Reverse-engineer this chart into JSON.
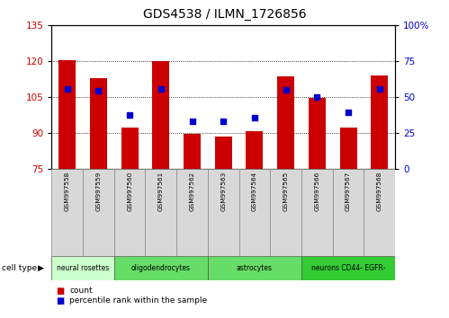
{
  "title": "GDS4538 / ILMN_1726856",
  "samples": [
    "GSM997558",
    "GSM997559",
    "GSM997560",
    "GSM997561",
    "GSM997562",
    "GSM997563",
    "GSM997564",
    "GSM997565",
    "GSM997566",
    "GSM997567",
    "GSM997568"
  ],
  "bar_values": [
    120.5,
    113.0,
    92.0,
    120.0,
    89.5,
    88.5,
    90.5,
    113.5,
    104.5,
    92.0,
    114.0
  ],
  "marker_values_left_scale": [
    108.5,
    107.5,
    97.5,
    108.5,
    95.0,
    95.0,
    96.5,
    108.0,
    105.0,
    98.5,
    108.5
  ],
  "bar_bottom": 75,
  "bar_color": "#cc0000",
  "marker_color": "#0000cc",
  "ylim_left": [
    75,
    135
  ],
  "ylim_right": [
    0,
    100
  ],
  "left_yticks": [
    75,
    90,
    105,
    120,
    135
  ],
  "right_yticks": [
    0,
    25,
    50,
    75,
    100
  ],
  "right_yticklabels": [
    "0",
    "25",
    "50",
    "75",
    "100%"
  ],
  "grid_values": [
    90,
    105,
    120
  ],
  "cell_groups": [
    {
      "label": "neural rosettes",
      "start": 0,
      "end": 2,
      "color": "#ccffcc"
    },
    {
      "label": "oligodendrocytes",
      "start": 2,
      "end": 5,
      "color": "#66dd66"
    },
    {
      "label": "astrocytes",
      "start": 5,
      "end": 8,
      "color": "#66dd66"
    },
    {
      "label": "neurons CD44- EGFR-",
      "start": 8,
      "end": 11,
      "color": "#33cc33"
    }
  ],
  "cell_type_label": "cell type",
  "legend_count_label": "count",
  "legend_pct_label": "percentile rank within the sample",
  "background_color": "#ffffff",
  "tick_label_color_left": "#cc0000",
  "tick_label_color_right": "#0000cc",
  "marker_size": 5,
  "bar_width": 0.55
}
